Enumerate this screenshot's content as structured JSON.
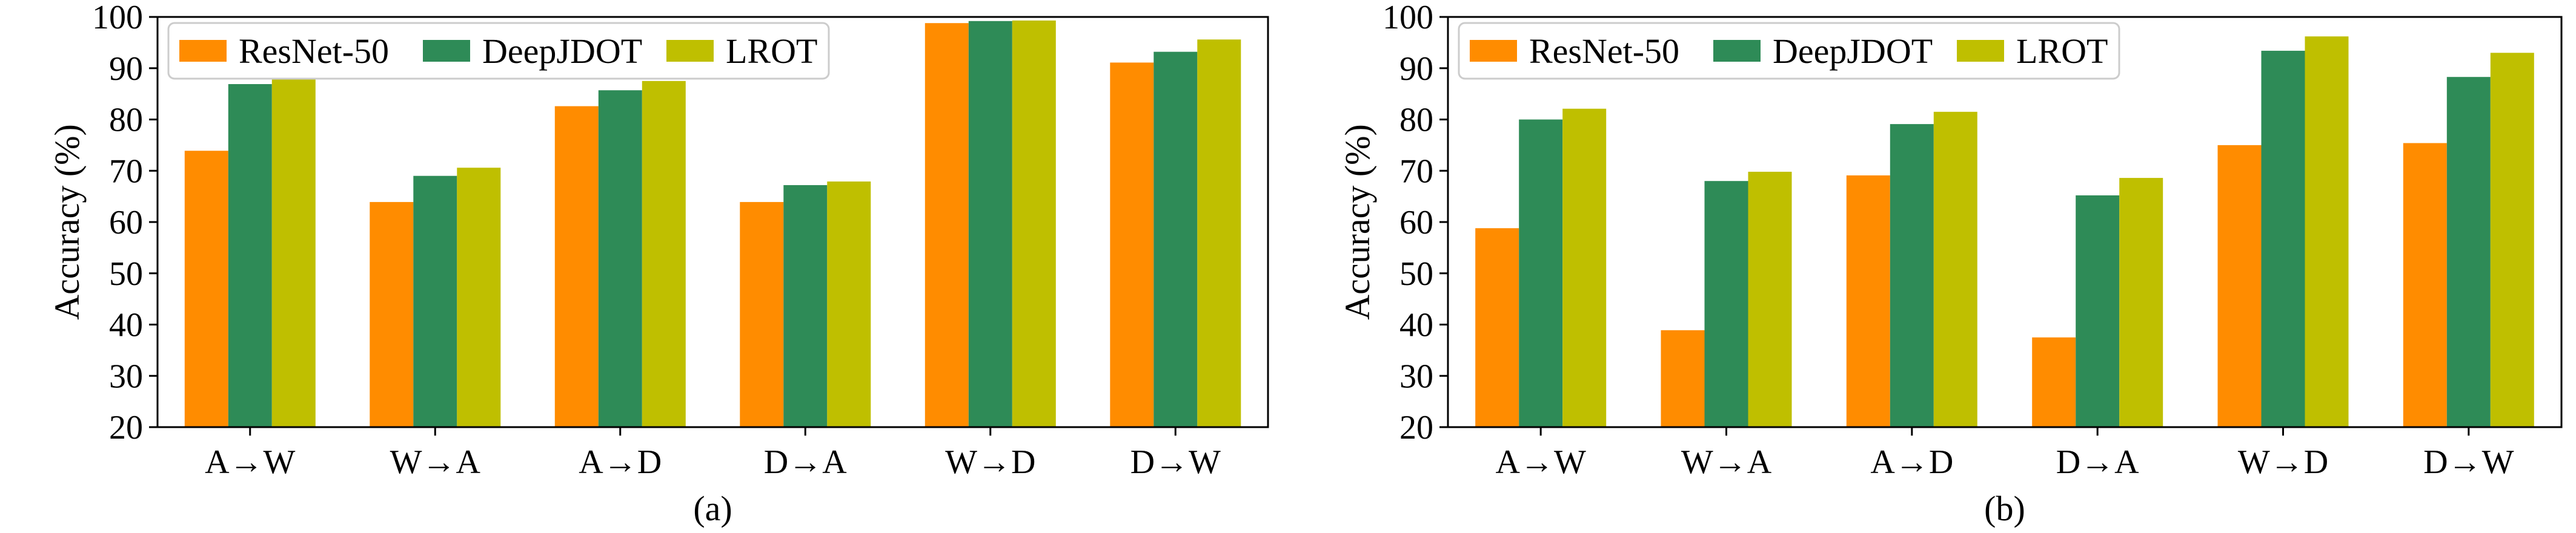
{
  "chart_data": [
    {
      "type": "bar",
      "caption": "(a)",
      "ylabel": "Accuracy (%)",
      "xlabel": "",
      "ylim": [
        20,
        100
      ],
      "yticks": [
        20,
        30,
        40,
        50,
        60,
        70,
        80,
        90,
        100
      ],
      "categories": [
        "A→W",
        "W→A",
        "A→D",
        "D→A",
        "W→D",
        "D→W"
      ],
      "legend_position": "top-left",
      "grid": false,
      "series": [
        {
          "name": "ResNet-50",
          "color": "#FF8C00",
          "values": [
            73.9,
            63.9,
            82.6,
            63.9,
            98.8,
            91.1
          ]
        },
        {
          "name": "DeepJDOT",
          "color": "#2E8B57",
          "values": [
            86.9,
            69.0,
            85.7,
            67.2,
            99.2,
            93.2
          ]
        },
        {
          "name": "LROT",
          "color": "#BFBF00",
          "values": [
            88.1,
            70.6,
            87.5,
            67.9,
            99.3,
            95.6
          ]
        }
      ]
    },
    {
      "type": "bar",
      "caption": "(b)",
      "ylabel": "Accuracy (%)",
      "xlabel": "",
      "ylim": [
        20,
        100
      ],
      "yticks": [
        20,
        30,
        40,
        50,
        60,
        70,
        80,
        90,
        100
      ],
      "categories": [
        "A→W",
        "W→A",
        "A→D",
        "D→A",
        "W→D",
        "D→W"
      ],
      "legend_position": "top-left",
      "grid": false,
      "series": [
        {
          "name": "ResNet-50",
          "color": "#FF8C00",
          "values": [
            58.8,
            38.9,
            69.1,
            37.5,
            75.0,
            75.4
          ]
        },
        {
          "name": "DeepJDOT",
          "color": "#2E8B57",
          "values": [
            80.0,
            68.0,
            79.1,
            65.2,
            93.4,
            88.3
          ]
        },
        {
          "name": "LROT",
          "color": "#BFBF00",
          "values": [
            82.1,
            69.8,
            81.5,
            68.6,
            96.2,
            93.0
          ]
        }
      ]
    }
  ]
}
